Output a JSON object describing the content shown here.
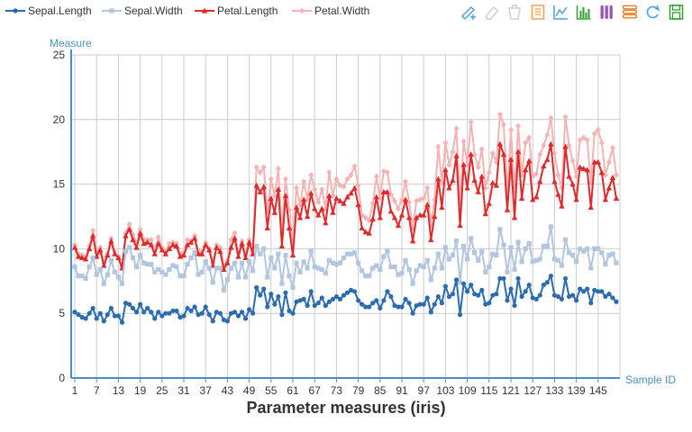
{
  "colors": {
    "sepal_length": "#2b6cb0",
    "sepal_width": "#b3c6e0",
    "petal_length": "#e0292a",
    "petal_width": "#f5b3b3",
    "axis": "#4a90c8",
    "grid": "#cccccc",
    "toolbox": "#4aa3df"
  },
  "toolbox": [
    {
      "name": "brush-icon",
      "color": "#4aa3df"
    },
    {
      "name": "eraser-icon",
      "color": "#cfcfcf"
    },
    {
      "name": "trash-icon",
      "color": "#cfcfcf"
    },
    {
      "name": "data-view-icon",
      "color": "#f0a050"
    },
    {
      "name": "line-chart-icon",
      "color": "#4aa3df"
    },
    {
      "name": "bar-chart-icon",
      "color": "#2ea02e"
    },
    {
      "name": "stack-icon",
      "color": "#9b59b6"
    },
    {
      "name": "tiled-icon",
      "color": "#e67e22"
    },
    {
      "name": "refresh-icon",
      "color": "#4aa3df"
    },
    {
      "name": "save-image-icon",
      "color": "#2ea02e"
    }
  ],
  "chart_data": {
    "type": "line",
    "xlabel": "Parameter measures (iris)",
    "x_axis_name": "Sample ID",
    "y_axis_name": "Measure",
    "ylim": [
      0,
      25
    ],
    "y_ticks": [
      0,
      5,
      10,
      15,
      20,
      25
    ],
    "x_tick_labels": [
      "1",
      "7",
      "13",
      "19",
      "25",
      "31",
      "37",
      "43",
      "49",
      "55",
      "61",
      "67",
      "73",
      "79",
      "85",
      "91",
      "97",
      "103",
      "109",
      "115",
      "121",
      "127",
      "133",
      "139",
      "145"
    ],
    "grid": true,
    "legend_position": "top-left",
    "series": [
      {
        "name": "Sepal.Length",
        "key": "sepal_length",
        "marker": "circle",
        "values": [
          5.1,
          4.9,
          4.7,
          4.6,
          5,
          5.4,
          4.6,
          5,
          4.4,
          4.9,
          5.4,
          4.8,
          4.8,
          4.3,
          5.8,
          5.7,
          5.4,
          5.1,
          5.7,
          5.1,
          5.4,
          5.1,
          4.6,
          5.1,
          4.8,
          5,
          5,
          5.2,
          5.2,
          4.7,
          4.8,
          5.4,
          5.2,
          5.5,
          4.9,
          5,
          5.5,
          4.9,
          4.4,
          5.1,
          5,
          4.5,
          4.4,
          5,
          5.1,
          4.8,
          5.1,
          4.6,
          5.3,
          5,
          7,
          6.4,
          6.9,
          5.5,
          6.5,
          5.7,
          6.3,
          4.9,
          6.6,
          5.2,
          5,
          5.9,
          6,
          6.1,
          5.6,
          6.7,
          5.6,
          5.8,
          6.2,
          5.6,
          5.9,
          6.1,
          6.3,
          6.1,
          6.4,
          6.6,
          6.8,
          6.7,
          6,
          5.7,
          5.5,
          5.5,
          5.8,
          6,
          5.4,
          6,
          6.7,
          6.3,
          5.6,
          5.5,
          5.5,
          6.1,
          5.8,
          5,
          5.6,
          5.7,
          5.7,
          6.2,
          5.1,
          5.7,
          6.3,
          5.8,
          7.1,
          6.3,
          6.5,
          7.6,
          4.9,
          7.3,
          6.7,
          7.2,
          6.5,
          6.4,
          6.8,
          5.7,
          5.8,
          6.4,
          6.5,
          7.7,
          7.7,
          6,
          6.9,
          5.6,
          7.7,
          6.3,
          6.7,
          7.2,
          6.2,
          6.1,
          6.4,
          7.2,
          7.4,
          7.9,
          6.4,
          6.3,
          6.1,
          7.7,
          6.3,
          6.4,
          6,
          6.9,
          6.7,
          6.9,
          5.8,
          6.8,
          6.7,
          6.7,
          6.3,
          6.5,
          6.2,
          5.9
        ]
      },
      {
        "name": "Sepal.Width",
        "key": "sepal_width",
        "marker": "square",
        "values": [
          8.6,
          7.9,
          7.9,
          7.7,
          8.6,
          9.3,
          8,
          8.4,
          7.3,
          8,
          9.1,
          8.2,
          7.8,
          7.3,
          9.8,
          10.1,
          9.3,
          8.6,
          9.5,
          8.9,
          8.8,
          8.8,
          8.2,
          8.4,
          8.2,
          8,
          8.4,
          8.7,
          8.6,
          7.9,
          7.9,
          8.8,
          9.3,
          9.7,
          8,
          8.2,
          9,
          8.5,
          7.4,
          8.5,
          8.5,
          6.8,
          7.6,
          8.5,
          8.9,
          7.8,
          8.9,
          7.8,
          9,
          8.3,
          10.2,
          9.6,
          10,
          7.8,
          9.3,
          8.5,
          9.6,
          7.3,
          9.5,
          7.9,
          7,
          8.9,
          8.2,
          9,
          8.5,
          9.8,
          8.6,
          8.5,
          8.4,
          8.1,
          9.1,
          8.9,
          8.8,
          8.9,
          9.3,
          9.6,
          9.6,
          9.7,
          8.9,
          8.3,
          7.9,
          7.9,
          8.5,
          8.7,
          8.4,
          9.4,
          9.8,
          8.6,
          8.6,
          8,
          8.1,
          9.1,
          8.4,
          7.3,
          8.3,
          8.7,
          8.6,
          9.1,
          7.6,
          8.5,
          9.6,
          8.5,
          10.1,
          9.2,
          9.5,
          10.6,
          7.4,
          10.2,
          9.2,
          10.8,
          9.7,
          9.1,
          9.8,
          8.2,
          8.6,
          9.6,
          9.5,
          11.5,
          10.3,
          8.2,
          10.1,
          8.4,
          10.5,
          9,
          10,
          10.4,
          9,
          9.1,
          9.2,
          10.2,
          10.2,
          11.7,
          9.2,
          9.1,
          8.7,
          10.7,
          9.7,
          9.5,
          9,
          10,
          9.8,
          10,
          8.5,
          10,
          10,
          9.7,
          8.8,
          9.5,
          9.6,
          8.9
        ]
      },
      {
        "name": "Petal.Length",
        "key": "petal_length",
        "marker": "triangle",
        "values": [
          10.1,
          9.4,
          9.3,
          9.2,
          10,
          11,
          9.4,
          9.9,
          8.7,
          9.5,
          10.6,
          9.6,
          9.3,
          8.5,
          11,
          11.5,
          10.7,
          10.1,
          11.2,
          10.4,
          10.5,
          10.3,
          9.6,
          10.4,
          9.9,
          9.6,
          10,
          10.3,
          10.2,
          9.4,
          9.5,
          10.3,
          10.5,
          10.8,
          9.6,
          9.6,
          10.3,
          9.9,
          8.7,
          10.1,
          9.8,
          8.4,
          8.9,
          10.1,
          10.8,
          9.4,
          10.4,
          9.3,
          10.5,
          9.6,
          14.9,
          14.4,
          14.8,
          11.6,
          13.9,
          12.8,
          14.6,
          10.2,
          14.1,
          11.6,
          9.5,
          13.2,
          12.4,
          13.8,
          12.5,
          14.3,
          13.1,
          12.6,
          13.1,
          12,
          14.1,
          12.8,
          13.9,
          13.7,
          13.5,
          14,
          14.3,
          14.7,
          13.4,
          11.6,
          11.3,
          11.2,
          12.3,
          14,
          12.4,
          14.4,
          14.4,
          12.9,
          12.4,
          11.8,
          12.6,
          13.8,
          12.4,
          10.6,
          12.4,
          12.6,
          12.6,
          13.4,
          10.7,
          12.5,
          15.4,
          13.2,
          16.1,
          14.7,
          15.3,
          17.2,
          11.8,
          16.5,
          14.7,
          17.3,
          15.3,
          14.4,
          15.6,
          12.7,
          13.5,
          15.1,
          14.9,
          18.1,
          17.3,
          13,
          16.9,
          12.4,
          17.5,
          13.9,
          16.1,
          16.8,
          13.8,
          14,
          15.2,
          16.4,
          16.9,
          18.1,
          15.2,
          14.2,
          13.3,
          17.9,
          15.6,
          15,
          13.8,
          16.3,
          16.2,
          16.1,
          13.2,
          16.7,
          16.7,
          15.9,
          13.8,
          14.7,
          15.5,
          13.9
        ]
      },
      {
        "name": "Petal.Width",
        "key": "petal_width",
        "marker": "diamond",
        "values": [
          10.3,
          9.6,
          9.5,
          9.4,
          10.2,
          11.4,
          9.7,
          10.1,
          8.9,
          9.6,
          10.8,
          9.8,
          9.4,
          8.6,
          11.2,
          11.9,
          11.1,
          10.4,
          11.5,
          10.7,
          10.7,
          10.7,
          9.8,
          10.9,
          10.1,
          9.8,
          10.4,
          10.5,
          10.4,
          9.6,
          9.7,
          10.7,
          10.6,
          11,
          9.8,
          9.8,
          10.5,
          10,
          8.9,
          10.3,
          10.1,
          8.7,
          9.1,
          10.7,
          11.2,
          9.7,
          10.6,
          9.5,
          10.7,
          9.8,
          16.3,
          15.9,
          16.3,
          12.9,
          15.4,
          14.1,
          16.2,
          11.2,
          15.4,
          13,
          10.5,
          14.7,
          13.4,
          15.2,
          13.8,
          15.7,
          14.6,
          13.6,
          14.6,
          13.1,
          15.9,
          14.1,
          15.4,
          14.9,
          14.8,
          15.4,
          15.7,
          16.4,
          14.9,
          12.6,
          12.4,
          12.2,
          13.5,
          15.6,
          13.9,
          16,
          15.9,
          14.2,
          13.7,
          13.1,
          13.8,
          15.2,
          13.6,
          11.6,
          13.7,
          13.8,
          13.9,
          14.7,
          11.8,
          13.8,
          17.9,
          15.1,
          18.2,
          16.5,
          17.5,
          19.3,
          13.5,
          18.3,
          16.5,
          19.8,
          17.3,
          16.3,
          17.7,
          14.7,
          15.9,
          17.4,
          16.7,
          20.4,
          19.6,
          14.5,
          19.2,
          14.4,
          19.5,
          15.7,
          18.2,
          18.6,
          15.6,
          15.8,
          17.3,
          18,
          18.8,
          20.1,
          17.4,
          15.7,
          14.7,
          20.2,
          18,
          16.8,
          15.6,
          18.4,
          18.6,
          18.4,
          15.1,
          18.9,
          19.2,
          18.2,
          15.7,
          16.7,
          17.8,
          15.7
        ]
      }
    ]
  }
}
